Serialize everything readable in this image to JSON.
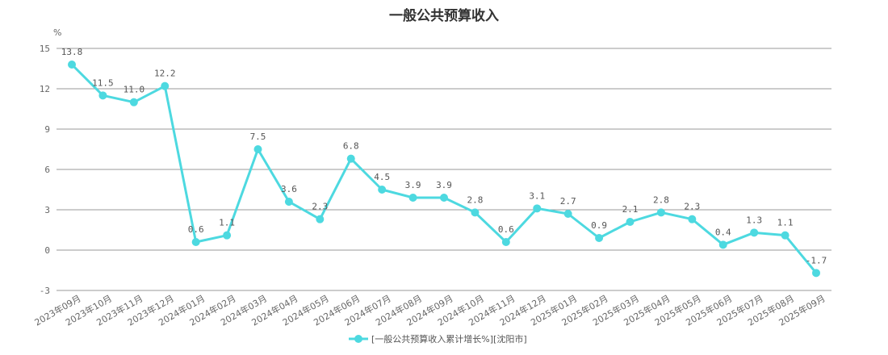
{
  "chart_data": {
    "type": "line",
    "title": "一般公共预算收入",
    "ylabel": "%",
    "xlabel": "",
    "ylim": [
      -3,
      15
    ],
    "yticks": [
      -3,
      0,
      3,
      6,
      9,
      12,
      15
    ],
    "grid": true,
    "legend_position": "bottom-center",
    "categories": [
      "2023年09月",
      "2023年10月",
      "2023年11月",
      "2023年12月",
      "2024年01月",
      "2024年02月",
      "2024年03月",
      "2024年04月",
      "2024年05月",
      "2024年06月",
      "2024年07月",
      "2024年08月",
      "2024年09月",
      "2024年10月",
      "2024年11月",
      "2024年12月",
      "2025年01月",
      "2025年02月",
      "2025年03月",
      "2025年04月",
      "2025年05月",
      "2025年06月",
      "2025年07月",
      "2025年08月",
      "2025年09月"
    ],
    "series": [
      {
        "name": "[一般公共预算收入累计增长%][沈阳市]",
        "color": "#4dd9e0",
        "values": [
          13.8,
          11.5,
          11.0,
          12.2,
          0.6,
          1.1,
          7.5,
          3.6,
          2.3,
          6.8,
          4.5,
          3.9,
          3.9,
          2.8,
          0.6,
          3.1,
          2.7,
          0.9,
          2.1,
          2.8,
          2.3,
          0.4,
          1.3,
          1.1,
          -1.7
        ],
        "labels": [
          "13.8",
          "11.5",
          "11.0",
          "12.2",
          "0.6",
          "1.1",
          "7.5",
          "3.6",
          "2.3",
          "6.8",
          "4.5",
          "3.9",
          "3.9",
          "2.8",
          "0.6",
          "3.1",
          "2.7",
          "0.9",
          "2.1",
          "2.8",
          "2.3",
          "0.4",
          "1.3",
          "1.1",
          "-1.7"
        ]
      }
    ]
  }
}
